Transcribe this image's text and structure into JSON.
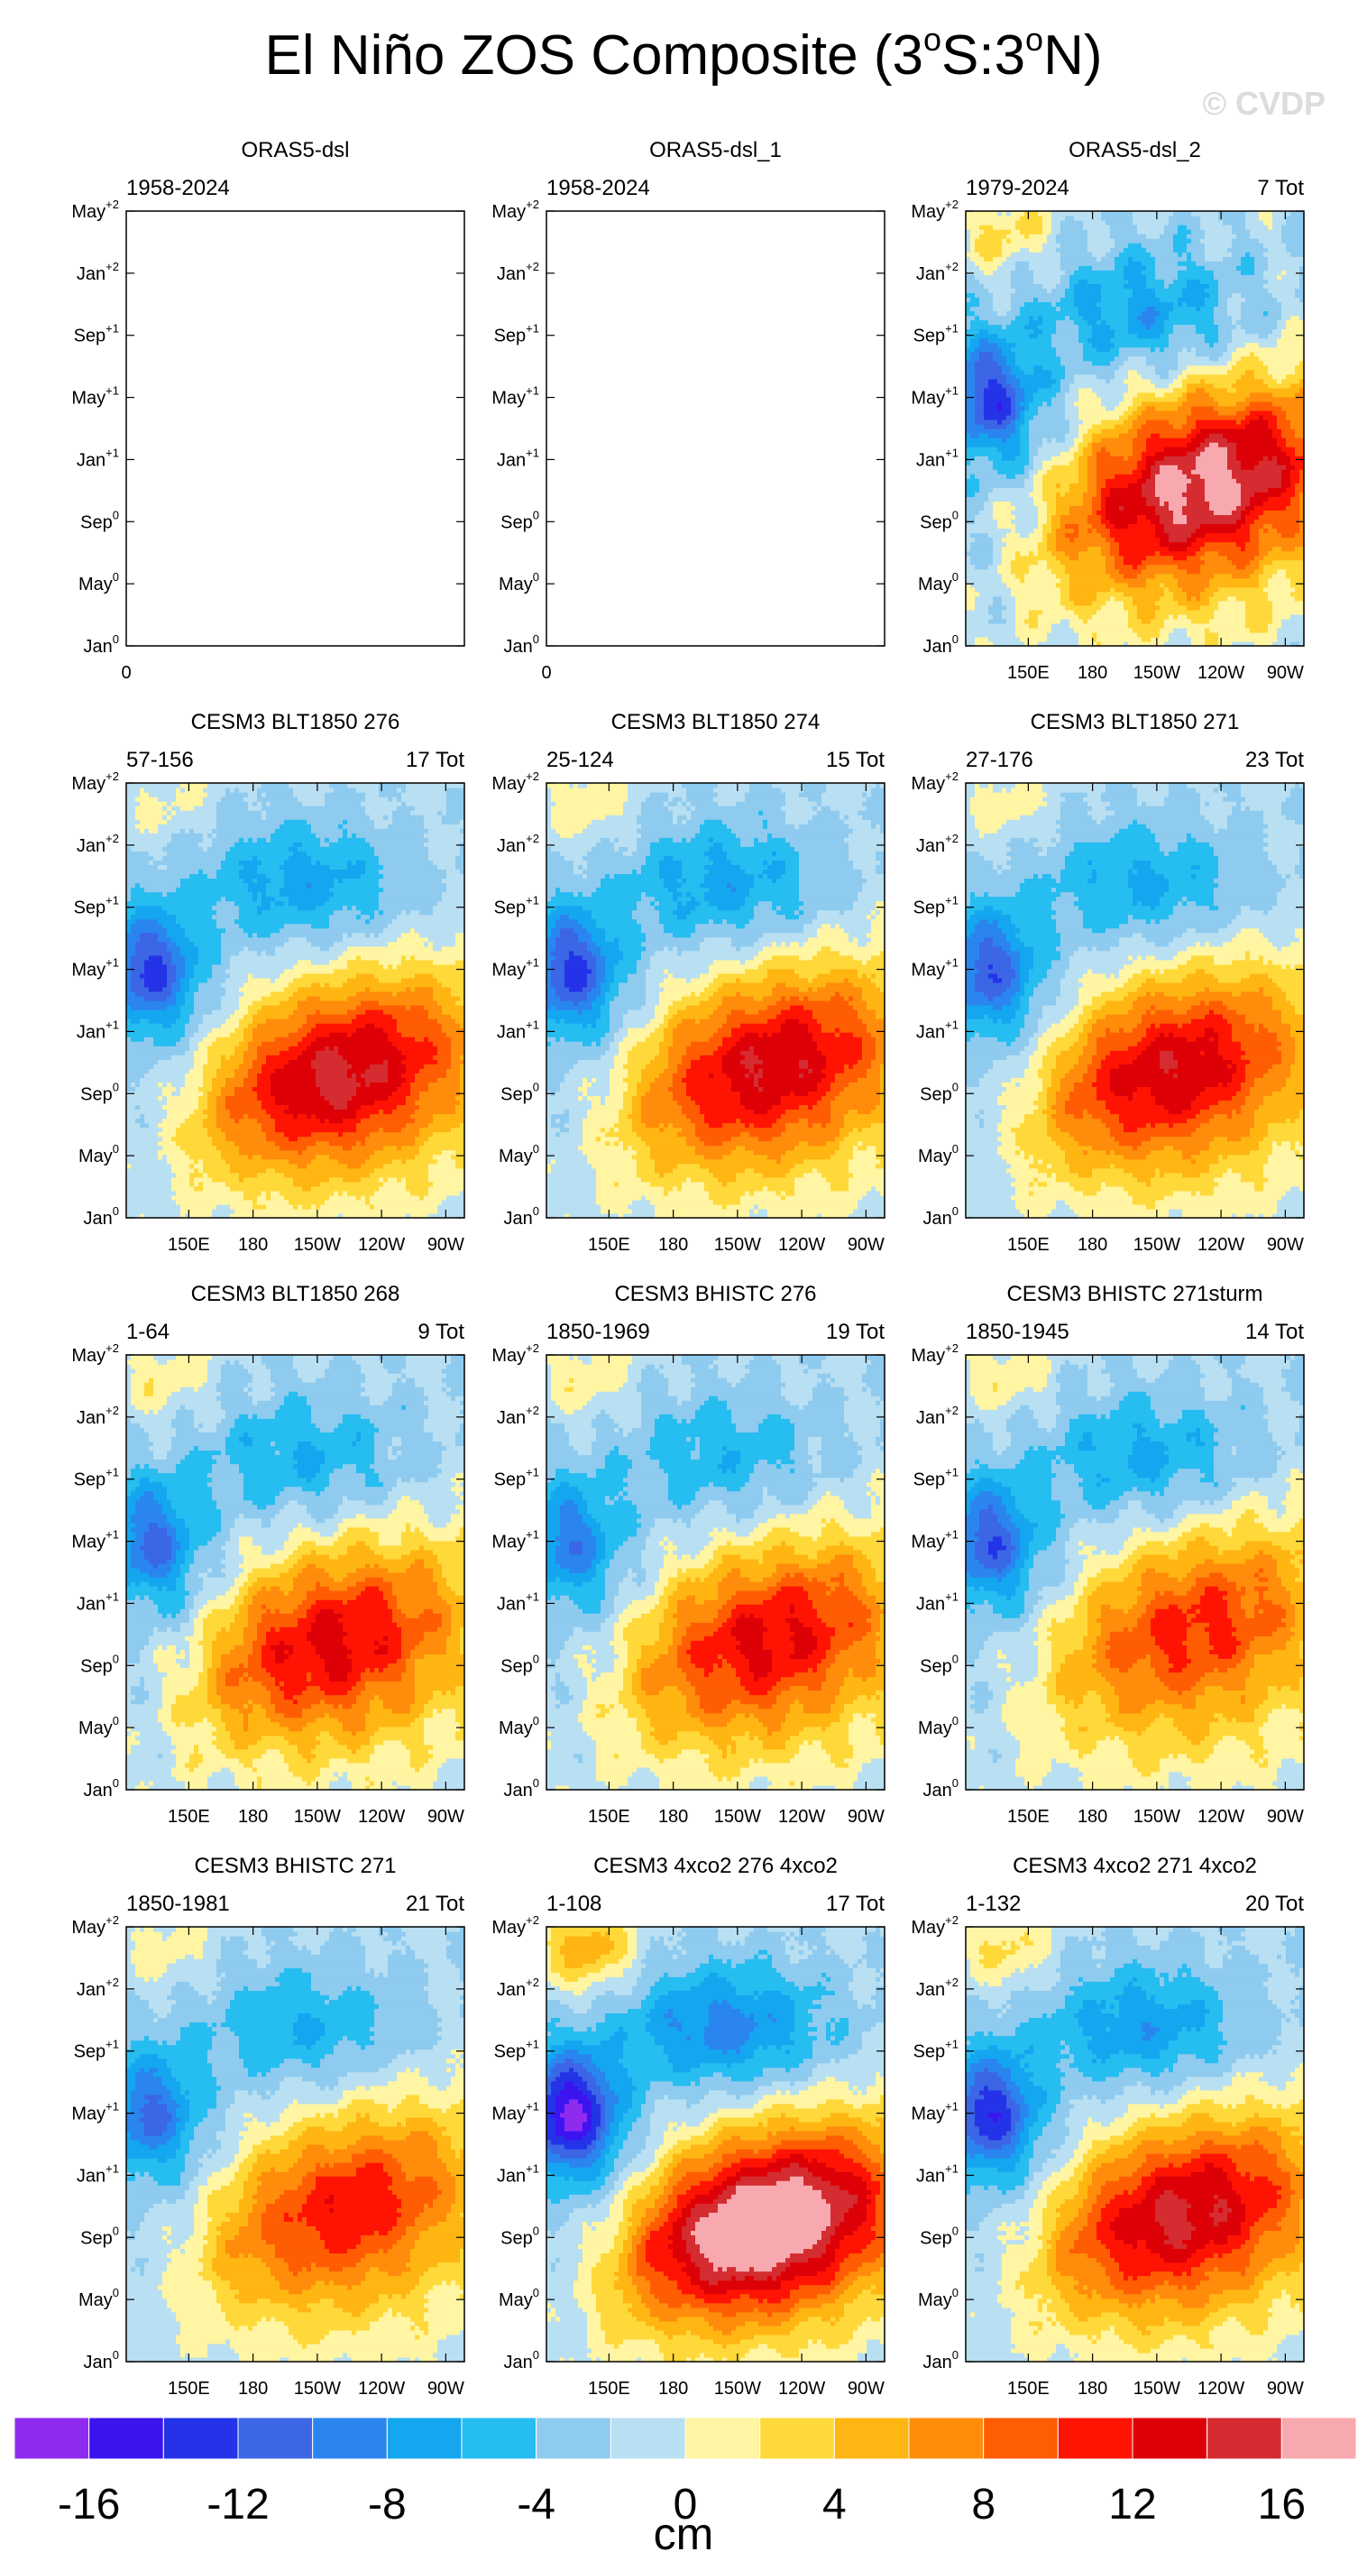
{
  "title": "El Niño ZOS Composite (3ᵒS:3ᵒN)",
  "title_parts": {
    "a": "El Niño ZOS Composite (3",
    "deg1": "o",
    "b": "S:3",
    "deg2": "o",
    "c": "N)"
  },
  "watermark": "© CVDP",
  "colorbar": {
    "unit": "cm",
    "tick_labels": [
      "-16",
      "-12",
      "-8",
      "-4",
      "0",
      "4",
      "8",
      "12",
      "16"
    ],
    "colors": [
      "#8f2bef",
      "#3c14f0",
      "#2433e8",
      "#3b66e6",
      "#2a85ef",
      "#15a6f0",
      "#26bdf0",
      "#8fcbef",
      "#b9dff2",
      "#fff5a2",
      "#ffd93a",
      "#ffb512",
      "#ff8c0b",
      "#ff5d03",
      "#ff1404",
      "#dd0006",
      "#d42c30",
      "#f8a9b0"
    ],
    "levels": [
      -16,
      -14,
      -12,
      -10,
      -8,
      -6,
      -4,
      -2,
      0,
      2,
      4,
      6,
      8,
      10,
      12,
      14,
      16
    ]
  },
  "chart_data": [
    {
      "type": "heatmap",
      "title": "ORAS5-dsl",
      "left_label": "1958-2024",
      "right_label": "",
      "empty": true,
      "ylabels": [
        "Jan",
        "May",
        "Sep",
        "Jan",
        "May",
        "Sep",
        "Jan",
        "May"
      ],
      "ysup": [
        "0",
        "0",
        "0",
        "+1",
        "+1",
        "+1",
        "+2",
        "+2"
      ],
      "xlabels": [
        "0"
      ],
      "amp": 0,
      "cx": 0,
      "cy": 0,
      "neg": 0,
      "pos": 0,
      "noise": 0
    },
    {
      "type": "heatmap",
      "title": "ORAS5-dsl_1",
      "left_label": "1958-2024",
      "right_label": "",
      "empty": true,
      "ylabels": [
        "Jan",
        "May",
        "Sep",
        "Jan",
        "May",
        "Sep",
        "Jan",
        "May"
      ],
      "ysup": [
        "0",
        "0",
        "0",
        "+1",
        "+1",
        "+1",
        "+2",
        "+2"
      ],
      "xlabels": [
        "0"
      ],
      "amp": 0,
      "cx": 0,
      "cy": 0,
      "neg": 0,
      "pos": 0,
      "noise": 0
    },
    {
      "type": "heatmap",
      "title": "ORAS5-dsl_2",
      "left_label": "1979-2024",
      "right_label": "7 Tot",
      "empty": false,
      "ylabels": [
        "Jan",
        "May",
        "Sep",
        "Jan",
        "May",
        "Sep",
        "Jan",
        "May"
      ],
      "ysup": [
        "0",
        "0",
        "0",
        "+1",
        "+1",
        "+1",
        "+2",
        "+2"
      ],
      "xlabels": [
        "150E",
        "180",
        "150W",
        "120W",
        "90W"
      ],
      "amp": 17,
      "cx": 0.72,
      "cy": 0.39,
      "neg": 11,
      "pos": 4,
      "noise": 1.2
    },
    {
      "type": "heatmap",
      "title": "CESM3 BLT1850 276",
      "left_label": "57-156",
      "right_label": "17 Tot",
      "empty": false,
      "ylabels": [
        "Jan",
        "May",
        "Sep",
        "Jan",
        "May",
        "Sep",
        "Jan",
        "May"
      ],
      "ysup": [
        "0",
        "0",
        "0",
        "+1",
        "+1",
        "+1",
        "+2",
        "+2"
      ],
      "xlabels": [
        "150E",
        "180",
        "150W",
        "120W",
        "90W"
      ],
      "amp": 14,
      "cx": 0.65,
      "cy": 0.35,
      "neg": 11,
      "pos": 2,
      "noise": 0.6
    },
    {
      "type": "heatmap",
      "title": "CESM3 BLT1850 274",
      "left_label": "25-124",
      "right_label": "15 Tot",
      "empty": false,
      "ylabels": [
        "Jan",
        "May",
        "Sep",
        "Jan",
        "May",
        "Sep",
        "Jan",
        "May"
      ],
      "ysup": [
        "0",
        "0",
        "0",
        "+1",
        "+1",
        "+1",
        "+2",
        "+2"
      ],
      "xlabels": [
        "150E",
        "180",
        "150W",
        "120W",
        "90W"
      ],
      "amp": 13.5,
      "cx": 0.68,
      "cy": 0.37,
      "neg": 11,
      "pos": 3,
      "noise": 0.7
    },
    {
      "type": "heatmap",
      "title": "CESM3 BLT1850 271",
      "left_label": "27-176",
      "right_label": "23 Tot",
      "empty": false,
      "ylabels": [
        "Jan",
        "May",
        "Sep",
        "Jan",
        "May",
        "Sep",
        "Jan",
        "May"
      ],
      "ysup": [
        "0",
        "0",
        "0",
        "+1",
        "+1",
        "+1",
        "+2",
        "+2"
      ],
      "xlabels": [
        "150E",
        "180",
        "150W",
        "120W",
        "90W"
      ],
      "amp": 13,
      "cx": 0.62,
      "cy": 0.36,
      "neg": 10,
      "pos": 2.5,
      "noise": 0.6
    },
    {
      "type": "heatmap",
      "title": "CESM3 BLT1850 268",
      "left_label": "1-64",
      "right_label": "9 Tot",
      "empty": false,
      "ylabels": [
        "Jan",
        "May",
        "Sep",
        "Jan",
        "May",
        "Sep",
        "Jan",
        "May"
      ],
      "ysup": [
        "0",
        "0",
        "0",
        "+1",
        "+1",
        "+1",
        "+2",
        "+2"
      ],
      "xlabels": [
        "150E",
        "180",
        "150W",
        "120W",
        "90W"
      ],
      "amp": 12,
      "cx": 0.62,
      "cy": 0.36,
      "neg": 9,
      "pos": 3,
      "noise": 0.9
    },
    {
      "type": "heatmap",
      "title": "CESM3 BHISTC 276",
      "left_label": "1850-1969",
      "right_label": "19 Tot",
      "empty": false,
      "ylabels": [
        "Jan",
        "May",
        "Sep",
        "Jan",
        "May",
        "Sep",
        "Jan",
        "May"
      ],
      "ysup": [
        "0",
        "0",
        "0",
        "+1",
        "+1",
        "+1",
        "+2",
        "+2"
      ],
      "xlabels": [
        "150E",
        "180",
        "150W",
        "120W",
        "90W"
      ],
      "amp": 12,
      "cx": 0.68,
      "cy": 0.37,
      "neg": 8,
      "pos": 3,
      "noise": 0.8
    },
    {
      "type": "heatmap",
      "title": "CESM3 BHISTC 271sturm",
      "left_label": "1850-1945",
      "right_label": "14 Tot",
      "empty": false,
      "ylabels": [
        "Jan",
        "May",
        "Sep",
        "Jan",
        "May",
        "Sep",
        "Jan",
        "May"
      ],
      "ysup": [
        "0",
        "0",
        "0",
        "+1",
        "+1",
        "+1",
        "+2",
        "+2"
      ],
      "xlabels": [
        "150E",
        "180",
        "150W",
        "120W",
        "90W"
      ],
      "amp": 10.5,
      "cx": 0.7,
      "cy": 0.4,
      "neg": 10,
      "pos": 3,
      "noise": 0.8
    },
    {
      "type": "heatmap",
      "title": "CESM3 BHISTC 271",
      "left_label": "1850-1981",
      "right_label": "21 Tot",
      "empty": false,
      "ylabels": [
        "Jan",
        "May",
        "Sep",
        "Jan",
        "May",
        "Sep",
        "Jan",
        "May"
      ],
      "ysup": [
        "0",
        "0",
        "0",
        "+1",
        "+1",
        "+1",
        "+2",
        "+2"
      ],
      "xlabels": [
        "150E",
        "180",
        "150W",
        "120W",
        "90W"
      ],
      "amp": 11,
      "cx": 0.67,
      "cy": 0.38,
      "neg": 9,
      "pos": 2.5,
      "noise": 0.6
    },
    {
      "type": "heatmap",
      "title": "CESM3 4xco2 276 4xco2",
      "left_label": "1-108",
      "right_label": "17 Tot",
      "empty": false,
      "ylabels": [
        "Jan",
        "May",
        "Sep",
        "Jan",
        "May",
        "Sep",
        "Jan",
        "May"
      ],
      "ysup": [
        "0",
        "0",
        "0",
        "+1",
        "+1",
        "+1",
        "+2",
        "+2"
      ],
      "xlabels": [
        "150E",
        "180",
        "150W",
        "120W",
        "90W"
      ],
      "amp": 19,
      "cx": 0.66,
      "cy": 0.33,
      "neg": 15,
      "pos": 7,
      "noise": 0.6
    },
    {
      "type": "heatmap",
      "title": "CESM3 4xco2 271 4xco2",
      "left_label": "1-132",
      "right_label": "20 Tot",
      "empty": false,
      "ylabels": [
        "Jan",
        "May",
        "Sep",
        "Jan",
        "May",
        "Sep",
        "Jan",
        "May"
      ],
      "ysup": [
        "0",
        "0",
        "0",
        "+1",
        "+1",
        "+1",
        "+2",
        "+2"
      ],
      "xlabels": [
        "150E",
        "180",
        "150W",
        "120W",
        "90W"
      ],
      "amp": 14,
      "cx": 0.66,
      "cy": 0.36,
      "neg": 12,
      "pos": 4,
      "noise": 0.6
    }
  ]
}
